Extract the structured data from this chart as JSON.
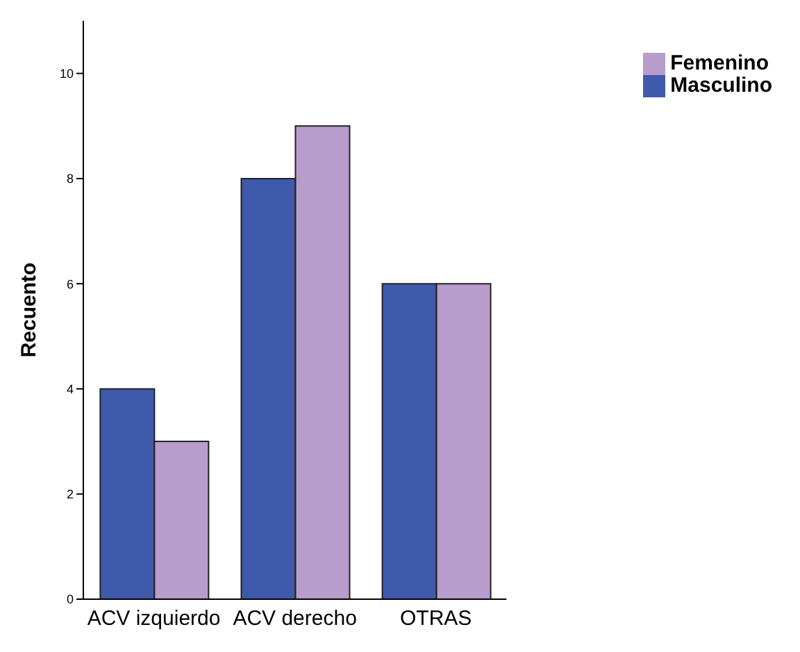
{
  "chart_data": {
    "type": "bar",
    "ylabel": "Recuento",
    "categories": [
      "ACV izquierdo",
      "ACV derecho",
      "OTRAS"
    ],
    "series": [
      {
        "name": "Masculino",
        "color": "#3f59ab",
        "values": [
          4,
          8,
          6
        ]
      },
      {
        "name": "Femenino",
        "color": "#b89ccb",
        "values": [
          3,
          9,
          6
        ]
      }
    ],
    "ylim": [
      0,
      11
    ],
    "yticks": [
      0,
      2,
      4,
      6,
      8,
      10
    ],
    "grid": false,
    "legend": "top right"
  }
}
